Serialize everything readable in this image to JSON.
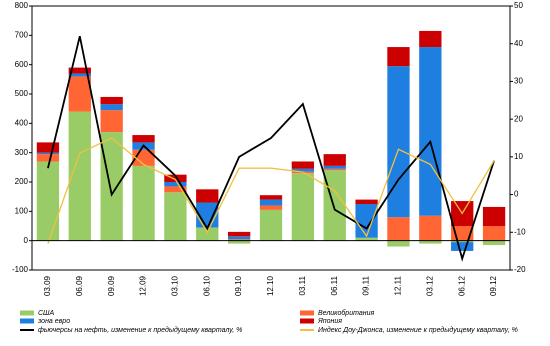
{
  "chart_data": {
    "type": "bar",
    "stacked": true,
    "grid": false,
    "categories": [
      "03.09",
      "06.09",
      "09.09",
      "12.09",
      "03.10",
      "06.10",
      "09.10",
      "12.10",
      "03.11",
      "06.11",
      "09.11",
      "12.11",
      "03.12",
      "06.12",
      "09.12"
    ],
    "ylim": [
      -100,
      800
    ],
    "yticks": [
      -100,
      0,
      100,
      200,
      300,
      400,
      500,
      600,
      700,
      800
    ],
    "y2lim": [
      -20,
      50
    ],
    "y2ticks": [
      -20,
      -10,
      0,
      10,
      20,
      30,
      40,
      50
    ],
    "series": [
      {
        "name": "США",
        "color": "#99cc66",
        "values": [
          270,
          440,
          370,
          255,
          165,
          45,
          -10,
          105,
          230,
          240,
          10,
          -20,
          -10,
          -5,
          -15
        ]
      },
      {
        "name": "Великобритания",
        "color": "#ff6633",
        "values": [
          25,
          120,
          75,
          55,
          20,
          0,
          5,
          15,
          5,
          5,
          0,
          80,
          85,
          50,
          50
        ]
      },
      {
        "name": "зона евро",
        "color": "#1f7fe0",
        "values": [
          5,
          10,
          20,
          25,
          15,
          85,
          10,
          20,
          10,
          10,
          115,
          515,
          575,
          -30,
          0
        ]
      },
      {
        "name": "Япония",
        "color": "#cc0000",
        "values": [
          35,
          20,
          25,
          25,
          25,
          45,
          15,
          15,
          25,
          40,
          15,
          65,
          55,
          85,
          65
        ]
      },
      {
        "name": "фьючерсы на нефть, изменение к предыдущему кварталу, %",
        "type": "line",
        "axis": "y2",
        "color": "#000000",
        "values": [
          7,
          42,
          0,
          13,
          5,
          -9,
          10,
          15,
          24,
          -4,
          -9,
          4,
          14,
          -17,
          9
        ]
      },
      {
        "name": "Индекс Доу-Джонса, изменение к предыдущему кварталу, %",
        "type": "line",
        "axis": "y2",
        "color": "#f0c040",
        "values": [
          -13,
          11,
          15,
          8,
          4,
          -10,
          7,
          7,
          6,
          1,
          -11,
          12,
          8,
          -5,
          9
        ]
      }
    ]
  }
}
